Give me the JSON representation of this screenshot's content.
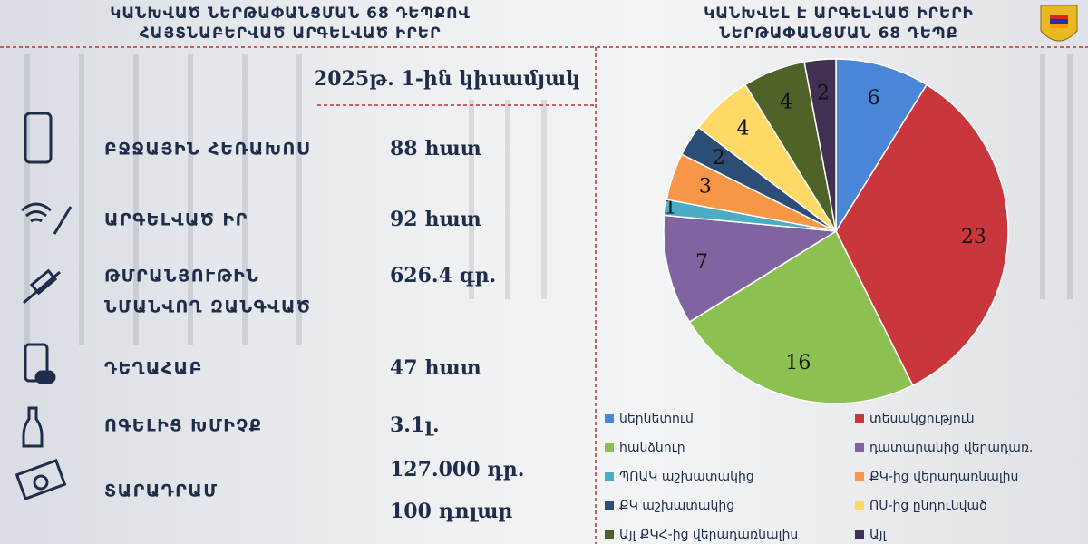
{
  "left_header": [
    "ԿԱՆԽՎԱԾ ՆԵՐԹԱՓԱՆՑՄԱՆ 68 ԴԵՊՔՈՎ",
    "ՀԱՅՏՆԱԲԵՐՎԱԾ ԱՐԳԵԼՎԱԾ ԻՐԵՐ"
  ],
  "period": "2025թ. 1-ին կիսամյակ",
  "items": [
    {
      "label": [
        "ԲՋՋԱՅԻՆ ՀԵՌԱԽՈՍ"
      ],
      "value": [
        "88 հատ"
      ]
    },
    {
      "label": [
        "ԱՐԳԵԼՎԱԾ ԻՐ"
      ],
      "value": [
        "92 հատ"
      ]
    },
    {
      "label": [
        "ԹՄՐԱՆՅՈՒԹԻՆ",
        "ՆՄԱՆՎՈՂ ԶԱՆԳՎԱԾ"
      ],
      "value": [
        "626.4 գր."
      ]
    },
    {
      "label": [
        "ԴԵՂԱՀԱԲ"
      ],
      "value": [
        "47 հատ"
      ]
    },
    {
      "label": [
        "ՈԳԵԼԻՑ ԽՄԻՉՔ"
      ],
      "value": [
        "3.1լ."
      ]
    },
    {
      "label": [
        "ՏԱՐԱԴՐԱՄ"
      ],
      "value": [
        "127.000 դր.",
        "100 դոլար"
      ]
    }
  ],
  "chart_data": {
    "type": "pie",
    "title": [
      "ԿԱՆԽՎԵԼ Է ԱՐԳԵԼՎԱԾ ԻՐԵՐԻ",
      "ՆԵՐԹԱՓԱՆՑՄԱՆ 68 ԴԵՊՔ"
    ],
    "categories": [
      "ներնետում",
      "տեսակցություն",
      "հանձնուր",
      "դատարանից վերադառ.",
      "ՊՈԱԿ աշխատակից",
      "ՔԿ-ից վերադառնալիս",
      "ՔԿ աշխատակից",
      "ՈՍ-ից ընդունված",
      "Այլ ՔԿՀ-ից վերադառնալիս",
      "Այլ"
    ],
    "values": [
      6,
      23,
      16,
      7,
      1,
      3,
      2,
      4,
      4,
      2
    ],
    "colors": [
      "#4a86d8",
      "#c9373c",
      "#8cc152",
      "#8064a2",
      "#4bacc6",
      "#f79646",
      "#2c4d75",
      "#ffd966",
      "#4f6228",
      "#403152"
    ]
  }
}
